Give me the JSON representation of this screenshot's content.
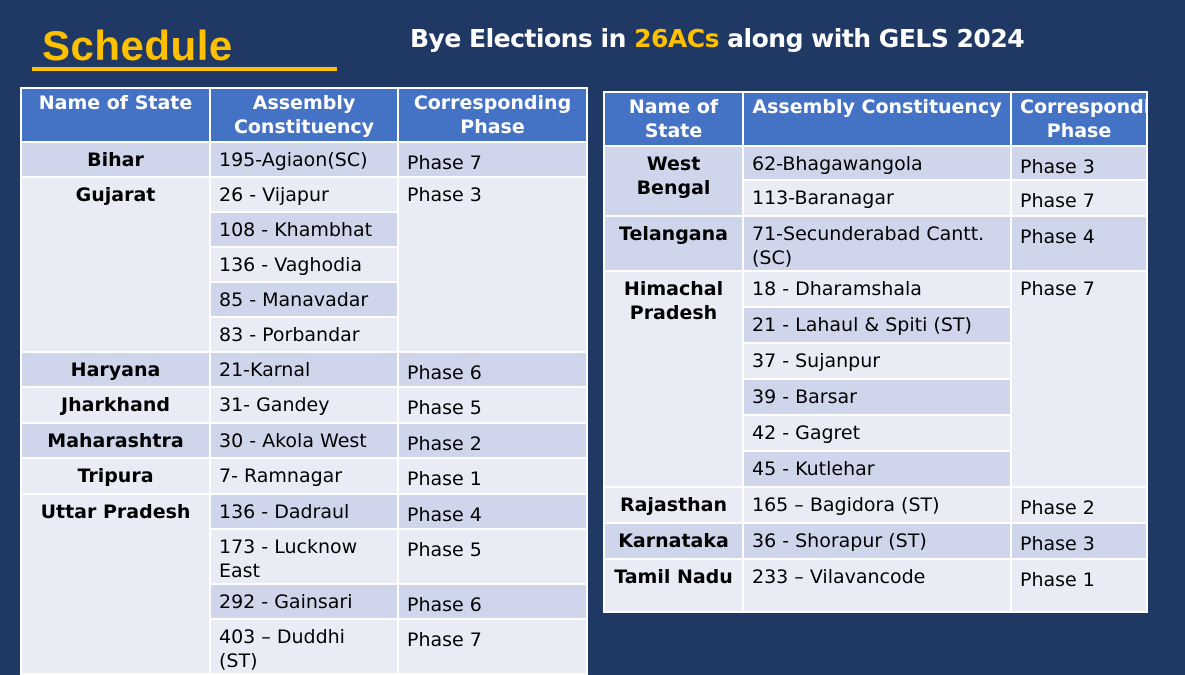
{
  "heading": "Schedule",
  "title": {
    "pre": "Bye Elections in ",
    "highlight": "26ACs",
    "post": " along with GELS 2024"
  },
  "colors": {
    "background": "#203864",
    "header": "#4472c4",
    "accent": "#ffc000",
    "row_dark": "#cfd5ea",
    "row_light": "#e9ebf5"
  },
  "left_table": {
    "headers": [
      "Name of State",
      "Assembly Constituency",
      "Corresponding Phase"
    ],
    "groups": [
      {
        "state": "Bihar",
        "rows": [
          [
            "195-Agiaon(SC)",
            "Phase 7"
          ]
        ]
      },
      {
        "state": "Gujarat",
        "phase": "Phase 3",
        "rows": [
          [
            "26 - Vijapur"
          ],
          [
            "108 - Khambhat"
          ],
          [
            "136 - Vaghodia"
          ],
          [
            "85 - Manavadar"
          ],
          [
            "83 - Porbandar"
          ]
        ]
      },
      {
        "state": "Haryana",
        "rows": [
          [
            "21-Karnal",
            "Phase 6"
          ]
        ]
      },
      {
        "state": "Jharkhand",
        "rows": [
          [
            "31- Gandey",
            "Phase 5"
          ]
        ]
      },
      {
        "state": "Maharashtra",
        "rows": [
          [
            "30 - Akola West",
            "Phase 2"
          ]
        ]
      },
      {
        "state": "Tripura",
        "rows": [
          [
            "7- Ramnagar",
            "Phase 1"
          ]
        ]
      },
      {
        "state": "Uttar Pradesh",
        "rows": [
          [
            "136 - Dadraul",
            "Phase 4"
          ],
          [
            "173 - Lucknow East",
            "Phase 5"
          ],
          [
            "292 - Gainsari",
            "Phase 6"
          ],
          [
            "403 – Duddhi (ST)",
            "Phase 7"
          ]
        ]
      }
    ]
  },
  "right_table": {
    "headers": [
      "Name of State",
      "Assembly Constituency",
      "Corresponding Phase"
    ],
    "groups": [
      {
        "state": "West Bengal",
        "rows": [
          [
            "62-Bhagawangola",
            "Phase 3"
          ],
          [
            "113-Baranagar",
            "Phase 7"
          ]
        ]
      },
      {
        "state": "Telangana",
        "rows": [
          [
            "71-Secunderabad Cantt.(SC)",
            "Phase 4"
          ]
        ]
      },
      {
        "state": "Himachal Pradesh",
        "phase": "Phase 7",
        "rows": [
          [
            "18 - Dharamshala"
          ],
          [
            "21 - Lahaul & Spiti (ST)"
          ],
          [
            "37 - Sujanpur"
          ],
          [
            "39 - Barsar"
          ],
          [
            "42 - Gagret"
          ],
          [
            "45 - Kutlehar"
          ]
        ]
      },
      {
        "state": "Rajasthan",
        "rows": [
          [
            "165 – Bagidora (ST)",
            "Phase 2"
          ]
        ]
      },
      {
        "state": "Karnataka",
        "rows": [
          [
            "36 - Shorapur (ST)",
            "Phase 3"
          ]
        ]
      },
      {
        "state": "Tamil Nadu",
        "rows": [
          [
            "233 – Vilavancode",
            "Phase 1"
          ]
        ]
      }
    ]
  }
}
